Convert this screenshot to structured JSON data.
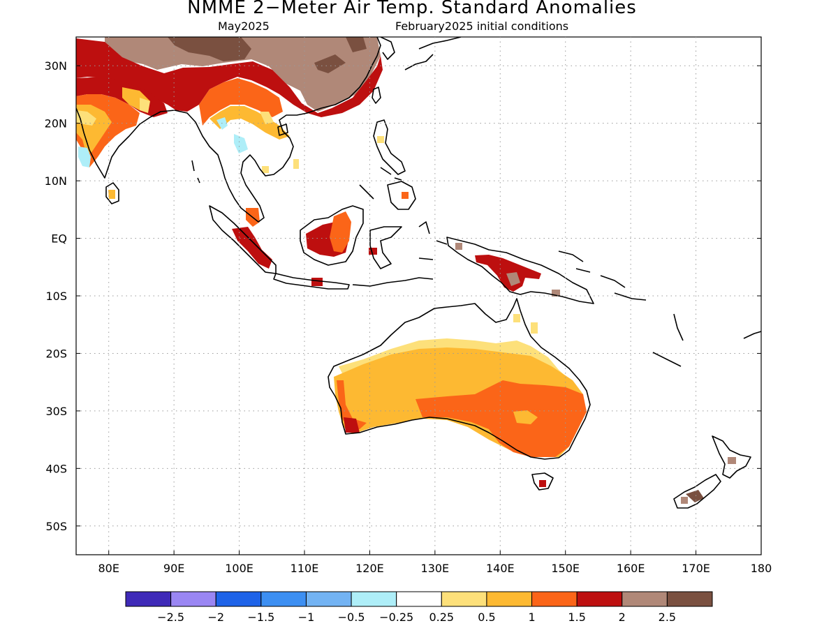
{
  "title": "NMME 2−Meter Air Temp. Standard Anomalies",
  "subtitle_left": "May2025",
  "subtitle_right": "February2025 initial conditions",
  "map": {
    "lon_range": [
      75,
      180
    ],
    "lat_range": [
      -55,
      35
    ],
    "lon_ticks": [
      {
        "value": 80,
        "label": "80E"
      },
      {
        "value": 90,
        "label": "90E"
      },
      {
        "value": 100,
        "label": "100E"
      },
      {
        "value": 110,
        "label": "110E"
      },
      {
        "value": 120,
        "label": "120E"
      },
      {
        "value": 130,
        "label": "130E"
      },
      {
        "value": 140,
        "label": "140E"
      },
      {
        "value": 150,
        "label": "150E"
      },
      {
        "value": 160,
        "label": "160E"
      },
      {
        "value": 170,
        "label": "170E"
      },
      {
        "value": 180,
        "label": "180"
      }
    ],
    "lat_ticks": [
      {
        "value": 30,
        "label": "30N"
      },
      {
        "value": 20,
        "label": "20N"
      },
      {
        "value": 10,
        "label": "10N"
      },
      {
        "value": 0,
        "label": "EQ"
      },
      {
        "value": -10,
        "label": "10S"
      },
      {
        "value": -20,
        "label": "20S"
      },
      {
        "value": -30,
        "label": "30S"
      },
      {
        "value": -40,
        "label": "40S"
      },
      {
        "value": -50,
        "label": "50S"
      }
    ],
    "grid": "dotted"
  },
  "colorbar": {
    "colors": [
      "#3f2ab8",
      "#9a86f3",
      "#1e63e8",
      "#3d8ff2",
      "#73b3f3",
      "#aeeef8",
      "#ffffff",
      "#fde07a",
      "#fdb932",
      "#fb6518",
      "#bd0f0f",
      "#b08878",
      "#7a5040"
    ],
    "labels": [
      "−2.5",
      "−2",
      "−1.5",
      "−1",
      "−0.5",
      "−0.25",
      "0.25",
      "0.5",
      "1",
      "1.5",
      "2",
      "2.5"
    ]
  }
}
